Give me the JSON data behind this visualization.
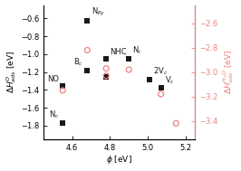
{
  "black_points": {
    "phi": [
      4.55,
      4.55,
      4.68,
      4.78,
      4.78,
      4.9,
      5.01,
      5.07
    ],
    "dH_O": [
      -1.35,
      -1.77,
      -1.18,
      -1.05,
      -1.25,
      -1.05,
      -1.28,
      -1.38
    ],
    "labels": [
      "NO",
      "N_c",
      "B_c",
      "NHC",
      "",
      "N_i",
      "2V_c",
      "V_c"
    ],
    "label_ha": [
      "right",
      "right",
      "right",
      "left",
      "left",
      "left",
      "left",
      "left"
    ],
    "label_dx": [
      -0.02,
      -0.02,
      -0.02,
      0.02,
      0,
      0.02,
      0.02,
      0.02
    ],
    "label_dy": [
      0.03,
      0.03,
      0.03,
      0.03,
      0,
      0.03,
      0.03,
      0.03
    ]
  },
  "NPy": {
    "phi": 4.68,
    "dH_O": -0.63
  },
  "pink_points": {
    "phi": [
      4.55,
      4.68,
      4.78,
      4.78,
      4.9,
      5.07,
      5.15
    ],
    "dH_W": [
      -3.15,
      -2.82,
      -2.97,
      -3.03,
      -2.98,
      -3.18,
      -3.42
    ]
  },
  "xlim": [
    4.45,
    5.25
  ],
  "ylim_left": [
    -1.95,
    -0.45
  ],
  "ylim_right": [
    -3.55,
    -2.45
  ],
  "xticks": [
    4.6,
    4.8,
    5.0,
    5.2
  ],
  "yticks_left": [
    -0.6,
    -0.8,
    -1.0,
    -1.2,
    -1.4,
    -1.6,
    -1.8
  ],
  "yticks_right": [
    -2.6,
    -2.8,
    -3.0,
    -3.2,
    -3.4
  ],
  "black_color": "#1a1a1a",
  "pink_color": "#f08080",
  "marker_size_sq": 14,
  "marker_size_ci": 18,
  "fontsize_axis": 6.5,
  "fontsize_tick": 6.0,
  "fontsize_label": 6.0
}
